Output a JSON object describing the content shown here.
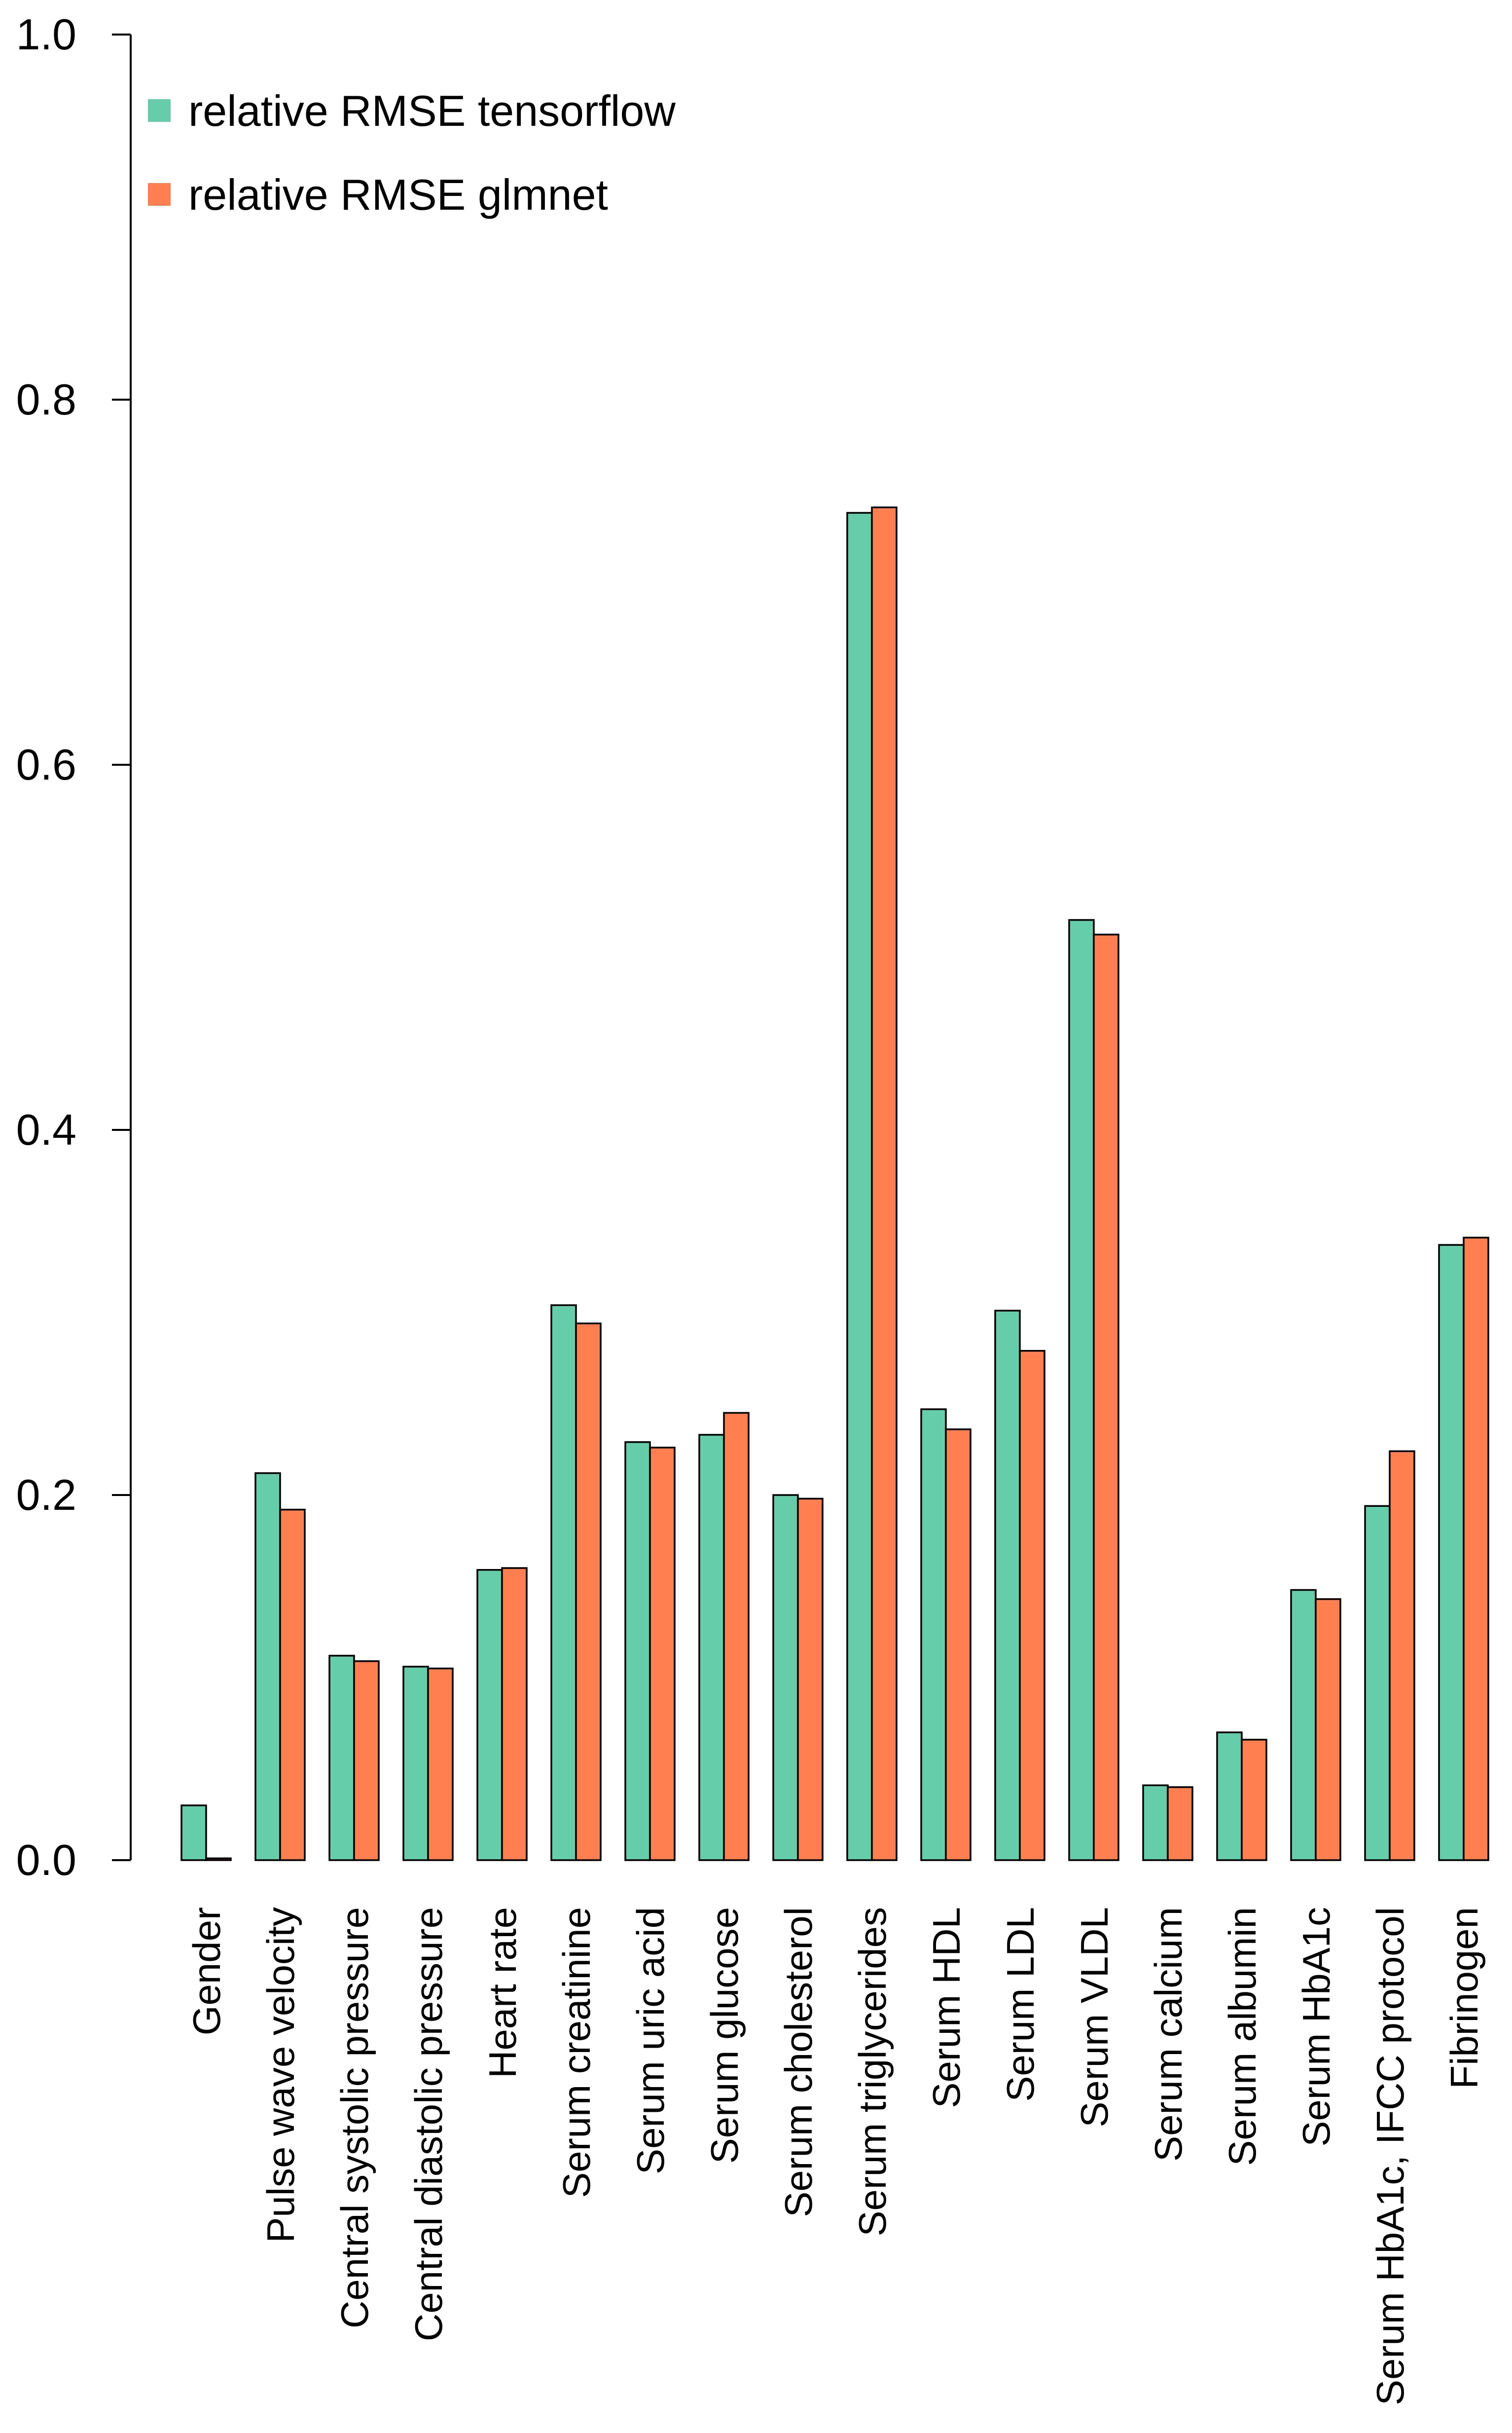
{
  "chart_data": {
    "type": "bar",
    "title": "",
    "xlabel": "",
    "ylabel": "",
    "ylim": [
      0,
      1
    ],
    "yticks": [
      "0.0",
      "0.2",
      "0.4",
      "0.6",
      "0.8",
      "1.0"
    ],
    "grid": false,
    "legend_position": "top-left",
    "categories": [
      "Gender",
      "Pulse wave velocity",
      "Central systolic pressure",
      "Central diastolic pressure",
      "Heart rate",
      "Serum creatinine",
      "Serum uric acid",
      "Serum glucose",
      "Serum cholesterol",
      "Serum triglycerides",
      "Serum HDL",
      "Serum LDL",
      "Serum VLDL",
      "Serum calcium",
      "Serum albumin",
      "Serum HbA1c",
      "Serum HbA1c, IFCC protocol",
      "Fibrinogen"
    ],
    "series": [
      {
        "name": "relative RMSE tensorflow",
        "color": "#66CDAA",
        "values": [
          0.03,
          0.212,
          0.112,
          0.106,
          0.159,
          0.304,
          0.229,
          0.233,
          0.2,
          0.738,
          0.247,
          0.301,
          0.515,
          0.041,
          0.07,
          0.148,
          0.194,
          0.337
        ]
      },
      {
        "name": "relative RMSE glmnet",
        "color": "#FF7F50",
        "values": [
          0.001,
          0.192,
          0.109,
          0.105,
          0.16,
          0.294,
          0.226,
          0.245,
          0.198,
          0.741,
          0.236,
          0.279,
          0.507,
          0.04,
          0.066,
          0.143,
          0.224,
          0.341
        ]
      }
    ]
  }
}
